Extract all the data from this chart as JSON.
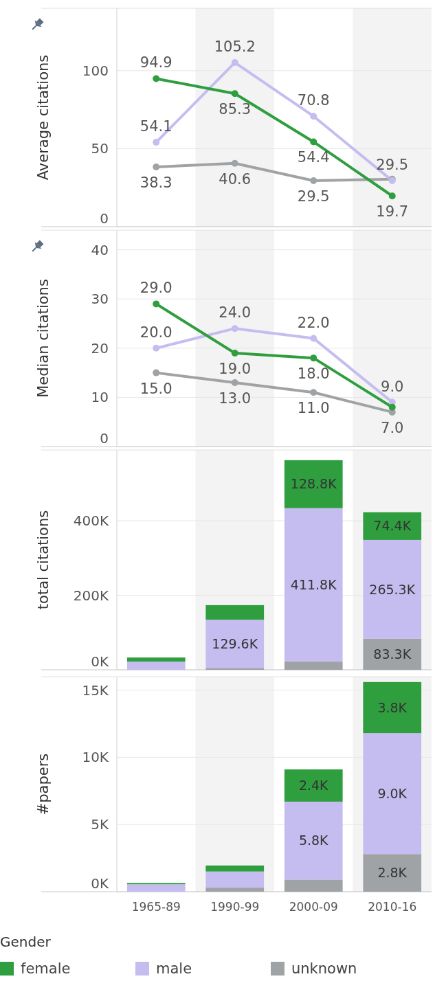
{
  "chart_data": [
    {
      "type": "line",
      "ylabel": "Average citations",
      "legend_title": "Gender",
      "legend": "bottom",
      "categories": [
        "1965-89",
        "1990-99",
        "2000-09",
        "2010-16"
      ],
      "ylim": [
        0,
        140
      ],
      "yticks": [
        0,
        50,
        100
      ],
      "grid": "y",
      "marker": "circle",
      "tick_labels": "y",
      "bands": [
        {
          "axis": "x",
          "from": "1990-99",
          "to": "1990-99",
          "color": "#f3f3f3"
        },
        {
          "axis": "x",
          "from": "2010-16",
          "to": "2010-16",
          "color": "#f3f3f3"
        }
      ],
      "series": [
        {
          "name": "unknown",
          "color": "#a0a3a5",
          "values": [
            38.3,
            40.6,
            29.5,
            30.5
          ],
          "value_labels": [
            "38.3",
            "40.6",
            "29.5",
            null
          ]
        },
        {
          "name": "male",
          "color": "#c5bdf0",
          "values": [
            54.1,
            105.2,
            70.8,
            29.5
          ],
          "value_labels": [
            "54.1",
            "105.2",
            "70.8",
            "29.5"
          ]
        },
        {
          "name": "female",
          "color": "#2f9e3f",
          "values": [
            94.9,
            85.3,
            54.4,
            19.7
          ],
          "value_labels": [
            "94.9",
            "85.3",
            "54.4",
            "19.7"
          ]
        }
      ]
    },
    {
      "type": "line",
      "ylabel": "Median citations",
      "categories": [
        "1965-89",
        "1990-99",
        "2000-09",
        "2010-16"
      ],
      "ylim": [
        0,
        44
      ],
      "yticks": [
        0,
        10,
        20,
        30,
        40
      ],
      "grid": "y",
      "marker": "circle",
      "tick_labels": "y",
      "bands": [
        {
          "axis": "x",
          "from": "1990-99",
          "to": "1990-99",
          "color": "#f3f3f3"
        },
        {
          "axis": "x",
          "from": "2010-16",
          "to": "2010-16",
          "color": "#f3f3f3"
        }
      ],
      "series": [
        {
          "color": "#a0a3a5",
          "values": [
            15,
            13,
            11,
            7
          ],
          "value_labels": [
            "15.0",
            "13.0",
            "11.0",
            "7.0"
          ]
        },
        {
          "color": "#c5bdf0",
          "values": [
            20,
            24,
            22,
            9
          ],
          "value_labels": [
            "20.0",
            "24.0",
            "22.0",
            "9.0"
          ]
        },
        {
          "color": "#2f9e3f",
          "values": [
            29,
            19,
            18,
            8
          ],
          "value_labels": [
            "29.0",
            "19.0",
            "18.0",
            null
          ]
        }
      ]
    },
    {
      "type": "bar",
      "stacked": true,
      "ylabel": "total citations",
      "categories": [
        "1965-89",
        "1990-99",
        "2000-09",
        "2010-16"
      ],
      "ylim": [
        0,
        590000
      ],
      "yticks": [
        {
          "value": 0,
          "label": "0K"
        },
        {
          "value": 200000,
          "label": "200K"
        },
        {
          "value": 400000,
          "label": "400K"
        }
      ],
      "grid": "y",
      "tick_labels": "y",
      "bands": [
        {
          "axis": "x",
          "from": "1990-99",
          "to": "1990-99",
          "color": "#f3f3f3"
        },
        {
          "axis": "x",
          "from": "2010-16",
          "to": "2010-16",
          "color": "#f3f3f3"
        }
      ],
      "series": [
        {
          "color": "#a0a3a5",
          "values": [
            null,
            5000,
            22000,
            83300
          ],
          "value_labels": [
            null,
            null,
            null,
            "83.3K"
          ]
        },
        {
          "color": "#c5bdf0",
          "values": [
            22000,
            129600,
            411800,
            265300
          ],
          "value_labels": [
            null,
            "129.6K",
            "411.8K",
            "265.3K"
          ]
        },
        {
          "color": "#2f9e3f",
          "values": [
            11000,
            39000,
            128800,
            74400
          ],
          "value_labels": [
            null,
            null,
            "128.8K",
            "74.4K"
          ]
        }
      ]
    },
    {
      "type": "bar",
      "stacked": true,
      "ylabel": "#papers",
      "categories": [
        "1965-89",
        "1990-99",
        "2000-09",
        "2010-16"
      ],
      "ylim": [
        0,
        16000
      ],
      "yticks": [
        {
          "value": 0,
          "label": "0K"
        },
        {
          "value": 5000,
          "label": "5K"
        },
        {
          "value": 10000,
          "label": "10K"
        },
        {
          "value": 15000,
          "label": "15K"
        }
      ],
      "grid": "y",
      "bands": [
        {
          "axis": "x",
          "from": "1990-99",
          "to": "1990-99",
          "color": "#f3f3f3"
        },
        {
          "axis": "x",
          "from": "2010-16",
          "to": "2010-16",
          "color": "#f3f3f3"
        }
      ],
      "series": [
        {
          "color": "#a0a3a5",
          "values": [
            null,
            300,
            900,
            2800
          ],
          "value_labels": [
            null,
            null,
            null,
            "2.8K"
          ]
        },
        {
          "color": "#c5bdf0",
          "values": [
            550,
            1200,
            5800,
            9000
          ],
          "value_labels": [
            null,
            null,
            "5.8K",
            "9.0K"
          ]
        },
        {
          "color": "#2f9e3f",
          "values": [
            100,
            450,
            2400,
            3800
          ],
          "value_labels": [
            null,
            null,
            "2.4K",
            "3.8K"
          ]
        }
      ]
    }
  ]
}
